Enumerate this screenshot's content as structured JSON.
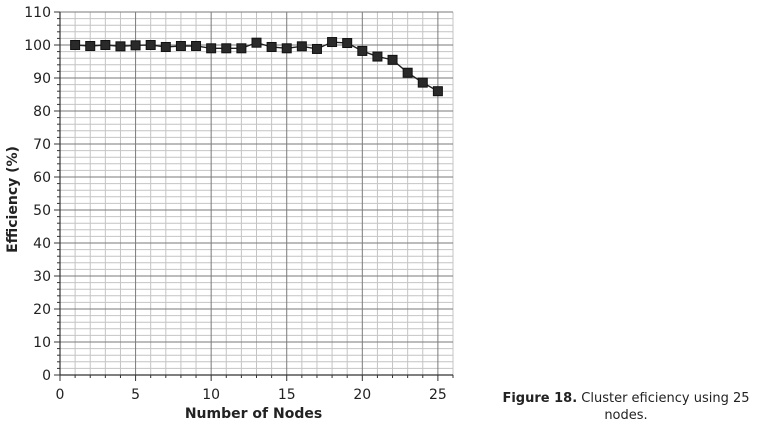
{
  "chart_data": {
    "type": "line",
    "title": "",
    "xlabel": "Number of Nodes",
    "ylabel": "Efficiency (%)",
    "xlim": [
      0,
      26
    ],
    "ylim": [
      0,
      110
    ],
    "x_ticks": [
      "0",
      "5",
      "10",
      "15",
      "20",
      "25"
    ],
    "y_ticks": [
      "0",
      "10",
      "20",
      "30",
      "40",
      "50",
      "60",
      "70",
      "80",
      "90",
      "100",
      "110"
    ],
    "grid": true,
    "legend": "none",
    "marker": "square",
    "series": [
      {
        "x": [
          1,
          2,
          3,
          4,
          5,
          6,
          7,
          8,
          9,
          10,
          11,
          12,
          13,
          14,
          15,
          16,
          17,
          18,
          19,
          20,
          21,
          22,
          23,
          24,
          25
        ],
        "values": [
          100,
          99.7,
          100,
          99.6,
          99.9,
          100,
          99.4,
          99.7,
          99.7,
          99,
          99,
          99,
          100.7,
          99.4,
          99,
          99.6,
          98.8,
          100.9,
          100.6,
          98.2,
          96.5,
          95.5,
          91.6,
          88.6,
          86
        ]
      }
    ]
  },
  "caption": {
    "label": "Figure 18.",
    "text": " Cluster eficiency using 25 nodes."
  },
  "colors": {
    "line": "#222222",
    "marker": "#2a2a2a",
    "major_grid": "#7a7a7a",
    "minor_grid": "#c4c4c4",
    "axis": "#333333"
  }
}
